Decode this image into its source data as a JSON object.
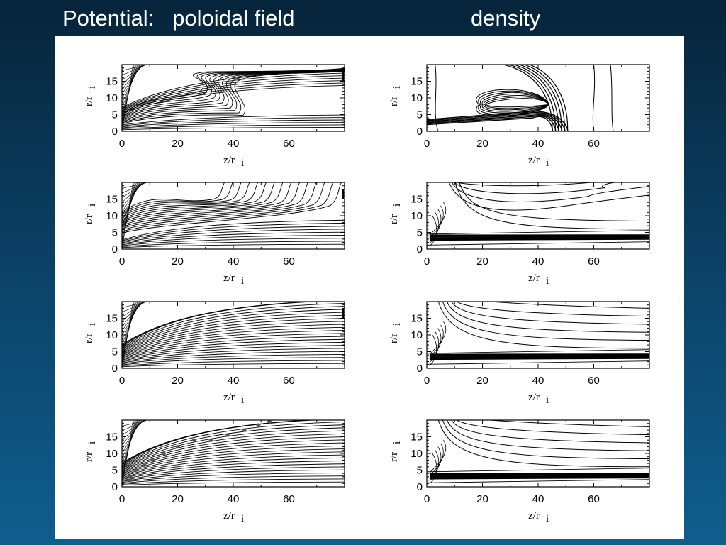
{
  "slide": {
    "title_left": "Potential:   poloidal field",
    "title_right": "density"
  },
  "colors": {
    "background_top": "#06243a",
    "background_bottom": "#0f5e8e",
    "figure_bg": "#ffffff",
    "line": "#000000",
    "marker": "#555555"
  },
  "axes": {
    "xlabel_main": "z/r",
    "xlabel_sub": "i",
    "ylabel_main": "r/r",
    "ylabel_sub": "i",
    "xticks": [
      "0",
      "20",
      "40",
      "60"
    ],
    "xtick_values": [
      0,
      20,
      40,
      60
    ],
    "yticks": [
      "0",
      "5",
      "10",
      "15"
    ],
    "ytick_values": [
      0,
      5,
      10,
      15
    ],
    "xlim": [
      0,
      80
    ],
    "ylim": [
      0,
      20
    ]
  },
  "panels": [
    {
      "column": "poloidal field",
      "row": 1,
      "style": "field_early"
    },
    {
      "column": "density",
      "row": 1,
      "style": "density_early"
    },
    {
      "column": "poloidal field",
      "row": 2,
      "style": "field_mid"
    },
    {
      "column": "density",
      "row": 2,
      "style": "density_mid"
    },
    {
      "column": "poloidal field",
      "row": 3,
      "style": "field_late"
    },
    {
      "column": "density",
      "row": 3,
      "style": "density_late"
    },
    {
      "column": "poloidal field",
      "row": 4,
      "style": "field_final",
      "markers": true
    },
    {
      "column": "density",
      "row": 4,
      "style": "density_final"
    }
  ]
}
